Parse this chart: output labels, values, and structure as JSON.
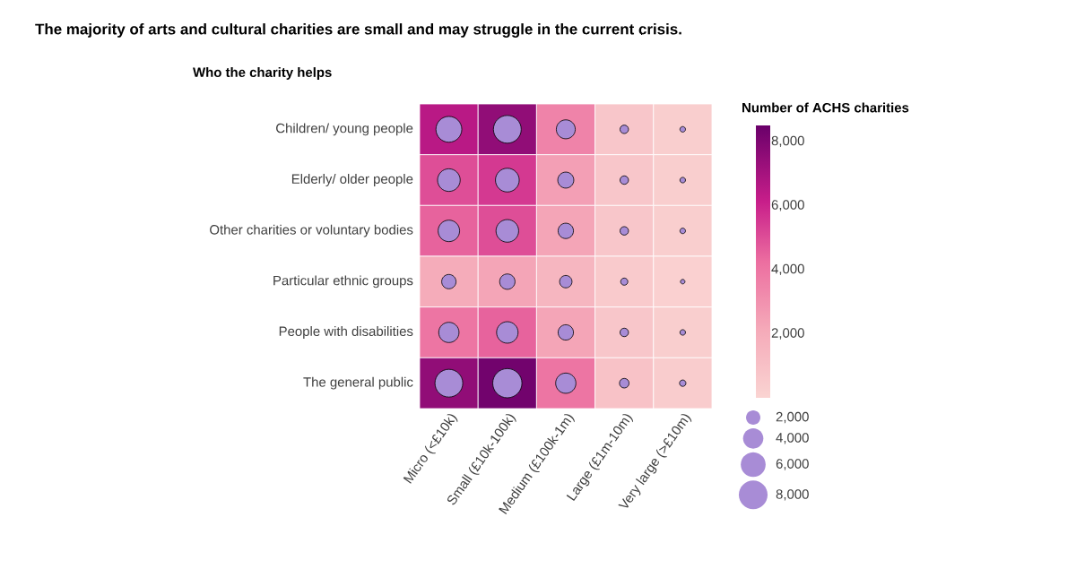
{
  "chart_data": {
    "type": "heatmap",
    "title": "The majority of arts and cultural charities are small and may struggle in the current crisis.",
    "ylabel": "Who the charity helps",
    "clabel": "Number of ACHS charities",
    "categories": [
      "Micro (<£10k)",
      "Small (£10k-100k)",
      "Medium (£100k-1m)",
      "Large (£1m-10m)",
      "Very large (>£10m)"
    ],
    "y_categories": [
      "Children/ young people",
      "Elderly/ older people",
      "Other charities or voluntary bodies",
      "Particular ethnic groups",
      "People with disabilities",
      "The general public"
    ],
    "cells": [
      [
        6500,
        7500,
        3500,
        700,
        300
      ],
      [
        5000,
        5500,
        2500,
        700,
        300
      ],
      [
        4500,
        5000,
        2300,
        700,
        300
      ],
      [
        2000,
        2300,
        1500,
        500,
        200
      ],
      [
        4000,
        4500,
        2300,
        700,
        300
      ],
      [
        7500,
        8300,
        4000,
        900,
        400
      ]
    ],
    "clim": [
      0,
      8500
    ],
    "cticks": [
      {
        "value": 2000,
        "label": "2,000"
      },
      {
        "value": 4000,
        "label": "4,000"
      },
      {
        "value": 6000,
        "label": "6,000"
      },
      {
        "value": 8000,
        "label": "8,000"
      }
    ],
    "series": [
      {
        "type": "bubble",
        "color": "#a88cd6",
        "x": [
          "Micro (<£10k)",
          "Small (£10k-100k)",
          "Medium (£100k-1m)",
          "Large (£1m-10m)",
          "Very large (>£10m)",
          "Micro (<£10k)",
          "Small (£10k-100k)",
          "Medium (£100k-1m)",
          "Large (£1m-10m)",
          "Very large (>£10m)",
          "Micro (<£10k)",
          "Small (£10k-100k)",
          "Medium (£100k-1m)",
          "Large (£1m-10m)",
          "Very large (>£10m)",
          "Micro (<£10k)",
          "Small (£10k-100k)",
          "Medium (£100k-1m)",
          "Large (£1m-10m)",
          "Very large (>£10m)",
          "Micro (<£10k)",
          "Small (£10k-100k)",
          "Medium (£100k-1m)",
          "Large (£1m-10m)",
          "Very large (>£10m)",
          "Micro (<£10k)",
          "Small (£10k-100k)",
          "Medium (£100k-1m)",
          "Large (£1m-10m)",
          "Very large (>£10m)"
        ],
        "values": [
          0,
          0,
          0,
          0,
          0,
          1,
          1,
          1,
          1,
          1,
          2,
          2,
          2,
          2,
          2,
          3,
          3,
          3,
          3,
          3,
          4,
          4,
          4,
          4,
          4,
          5,
          5,
          5,
          5,
          5
        ],
        "sizes": [
          6500,
          7500,
          3500,
          700,
          300,
          5000,
          5500,
          2500,
          700,
          300,
          4500,
          5000,
          2300,
          700,
          300,
          2000,
          2300,
          1500,
          500,
          200,
          4000,
          4500,
          2300,
          700,
          300,
          7500,
          8300,
          4000,
          900,
          400
        ]
      }
    ],
    "size_legend": [
      {
        "value": 2000,
        "label": "2,000"
      },
      {
        "value": 4000,
        "label": "4,000"
      },
      {
        "value": 6000,
        "label": "6,000"
      },
      {
        "value": 8000,
        "label": "8,000"
      }
    ]
  }
}
